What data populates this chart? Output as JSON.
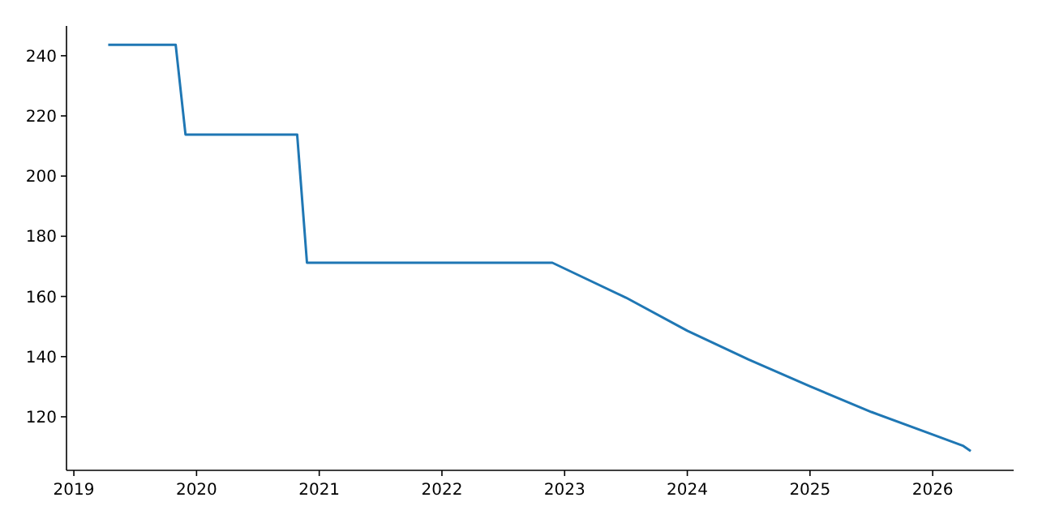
{
  "chart_data": {
    "type": "line",
    "x": [
      2019.28,
      2019.83,
      2019.91,
      2020.82,
      2020.9,
      2022.9,
      2023.5,
      2024,
      2024.5,
      2025,
      2025.5,
      2026,
      2026.25,
      2026.31
    ],
    "series": [
      {
        "color": "#1f77b4",
        "values": [
          243.6,
          243.6,
          213.8,
          213.8,
          171.2,
          171.2,
          159.6,
          148.6,
          139,
          130.1,
          121.6,
          114.1,
          110.3,
          108.6
        ]
      }
    ],
    "xlim": [
      2018.94,
      2026.66
    ],
    "xticks": [
      2019,
      2020,
      2021,
      2022,
      2023,
      2024,
      2025,
      2026
    ],
    "ylim": [
      102.2,
      249.9
    ],
    "yticks": [
      120,
      140,
      160,
      180,
      200,
      220,
      240
    ],
    "grid": false,
    "marker": "none",
    "line_style": "solid"
  }
}
